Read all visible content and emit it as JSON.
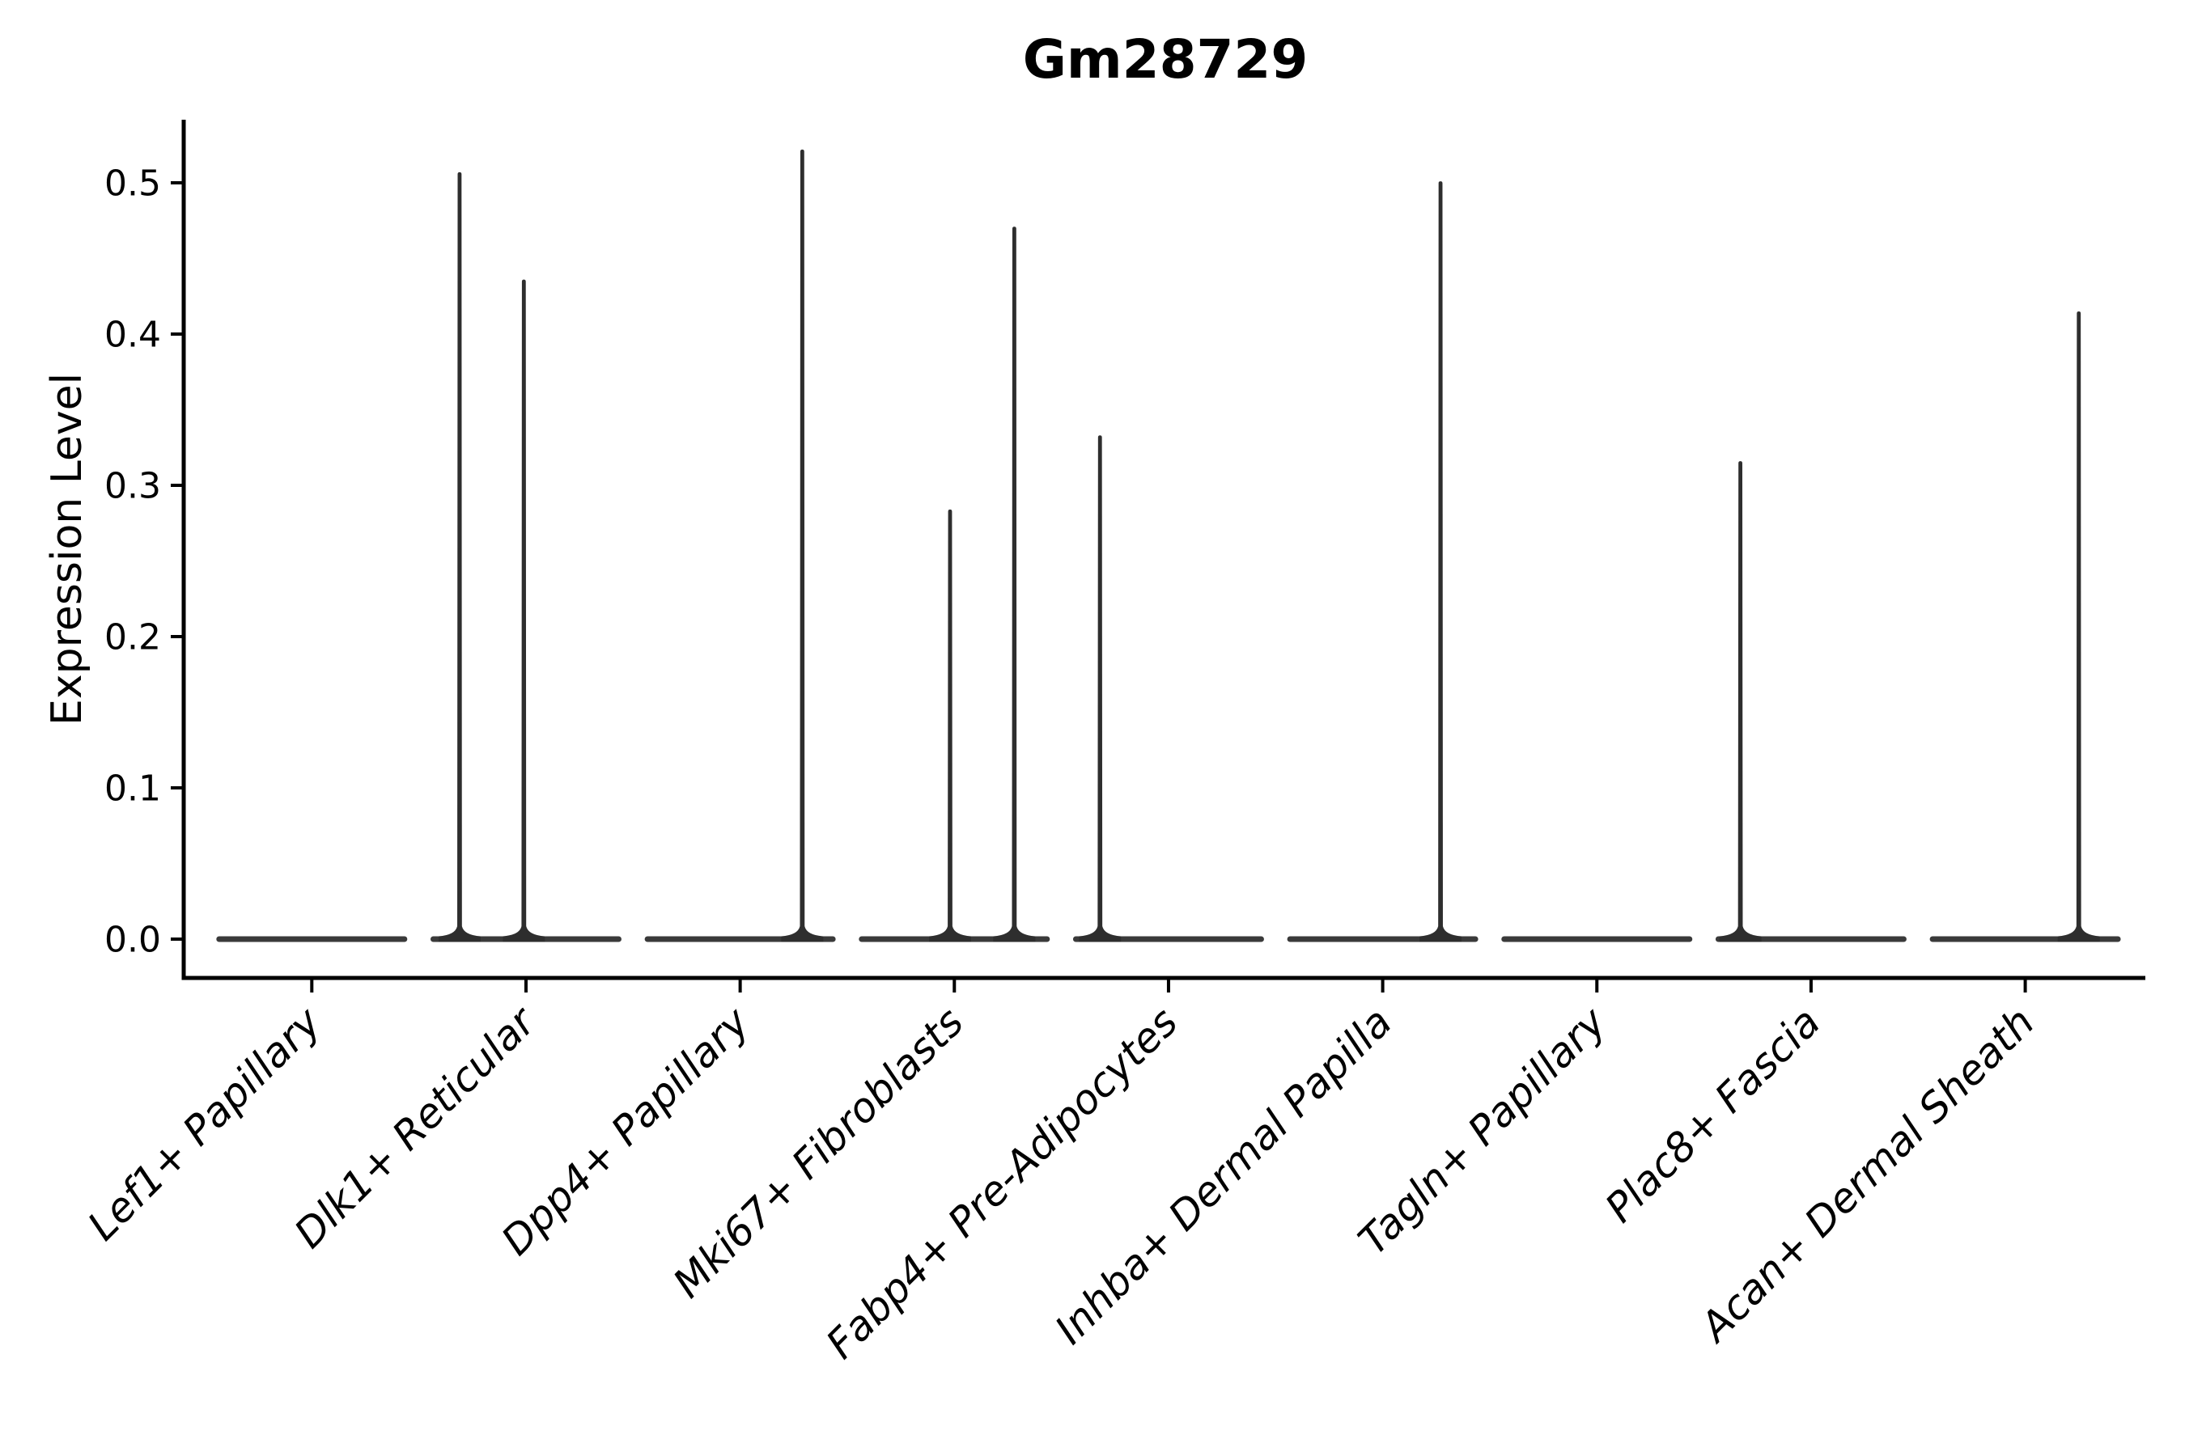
{
  "title": "Gm28729",
  "chart_data": {
    "type": "violin",
    "title": "Gm28729",
    "xlabel": "",
    "ylabel": "Expression Level",
    "ylim": [
      0.0,
      0.55
    ],
    "yticks": [
      "0.0",
      "0.1",
      "0.2",
      "0.3",
      "0.4",
      "0.5"
    ],
    "ytick_values": [
      0.0,
      0.1,
      0.2,
      0.3,
      0.4,
      0.5
    ],
    "grid": false,
    "legend": "none",
    "x_label_rotation_deg": 45,
    "categories": [
      "Lef1+ Papillary",
      "Dlk1+ Reticular",
      "Dpp4+ Papillary",
      "Mki67+ Fibroblasts",
      "Fabp4+ Pre-Adipocytes",
      "Inhba+ Dermal Papilla",
      "Tagln+ Papillary",
      "Plac8+ Fascia",
      "Acan+ Dermal Sheath"
    ],
    "series": [
      {
        "category": "Lef1+ Papillary",
        "baseline_value": 0.0,
        "spikes": []
      },
      {
        "category": "Dlk1+ Reticular",
        "baseline_value": 0.0,
        "spikes": [
          {
            "offset_frac": -0.31,
            "max": 0.507
          },
          {
            "offset_frac": -0.01,
            "max": 0.436
          }
        ]
      },
      {
        "category": "Dpp4+ Papillary",
        "baseline_value": 0.0,
        "spikes": [
          {
            "offset_frac": 0.29,
            "max": 0.522
          }
        ]
      },
      {
        "category": "Mki67+ Fibroblasts",
        "baseline_value": 0.0,
        "spikes": [
          {
            "offset_frac": -0.02,
            "max": 0.284
          },
          {
            "offset_frac": 0.28,
            "max": 0.471
          }
        ]
      },
      {
        "category": "Fabp4+ Pre-Adipocytes",
        "baseline_value": 0.0,
        "spikes": [
          {
            "offset_frac": -0.32,
            "max": 0.333
          }
        ]
      },
      {
        "category": "Inhba+ Dermal Papilla",
        "baseline_value": 0.0,
        "spikes": [
          {
            "offset_frac": 0.27,
            "max": 0.501
          }
        ]
      },
      {
        "category": "Tagln+ Papillary",
        "baseline_value": 0.0,
        "spikes": []
      },
      {
        "category": "Plac8+ Fascia",
        "baseline_value": 0.0,
        "spikes": [
          {
            "offset_frac": -0.33,
            "max": 0.316
          }
        ]
      },
      {
        "category": "Acan+ Dermal Sheath",
        "baseline_value": 0.0,
        "spikes": [
          {
            "offset_frac": 0.25,
            "max": 0.415
          }
        ]
      }
    ],
    "colors": {
      "spike_line": "#2e2e2e",
      "baseline_line": "#3a3a3a",
      "axis": "#000000",
      "text": "#000000",
      "background": "#ffffff"
    }
  }
}
